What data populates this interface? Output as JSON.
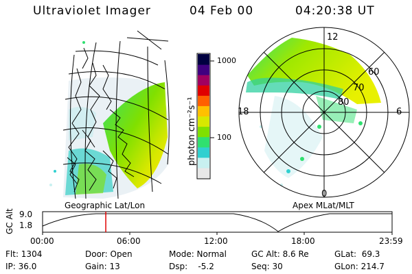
{
  "header": {
    "title": "Ultraviolet Imager",
    "date": "04 Feb 00",
    "time": "04:20:38 UT"
  },
  "colorbar": {
    "unit_label": "photon cm⁻²s⁻¹",
    "tick_high": "1000",
    "tick_mid": "100",
    "colors": [
      "#e8e8e8",
      "#c8f0f0",
      "#30d0d0",
      "#30e070",
      "#80e000",
      "#d8e800",
      "#ffc000",
      "#ff6000",
      "#e00000",
      "#a00060",
      "#400080",
      "#000040"
    ]
  },
  "geo_map": {
    "label": "Geographic Lat/Lon"
  },
  "polar_plot": {
    "label": "Apex MLat/MLT",
    "mlt_top": "12",
    "mlt_bottom": "0",
    "mlt_left": "18",
    "mlt_right": "6",
    "lat_60": "60",
    "lat_70": "70",
    "lat_80": "80"
  },
  "altitude_plot": {
    "ylabel": "GC Alt",
    "ytick_high": "9.0",
    "ytick_low": "1.8",
    "xticks": [
      "00:00",
      "06:00",
      "12:00",
      "18:00",
      "23:59"
    ],
    "marker_color": "#e00000",
    "marker_hour": 4.34
  },
  "info": {
    "flt": "Flt: 1304",
    "ip": "IP: 36.0",
    "door": "Door: Open",
    "gain": "Gain: 13",
    "mode": "Mode: Normal",
    "dsp": "Dsp:    -5.2",
    "gcalt": "GC Alt: 8.6 Re",
    "seq": "Seq: 30",
    "glat": "GLat:  69.3",
    "glon": "GLon: 214.7"
  }
}
